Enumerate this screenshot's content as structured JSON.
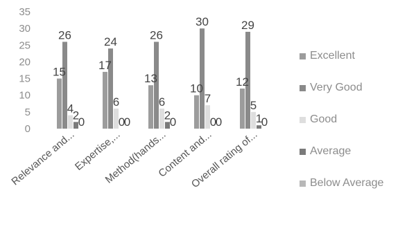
{
  "chart_data": {
    "type": "bar",
    "categories": [
      "Relevance and...",
      "Expertise,...",
      "Method(hands...",
      "Content and...",
      "Overall rating of..."
    ],
    "series": [
      {
        "name": "Excellent",
        "color": "#9c9c9c",
        "values": [
          15,
          17,
          13,
          10,
          12
        ]
      },
      {
        "name": "Very Good",
        "color": "#8a8a8a",
        "values": [
          26,
          24,
          26,
          30,
          29
        ]
      },
      {
        "name": "Good",
        "color": "#dedede",
        "values": [
          4,
          6,
          6,
          7,
          5
        ]
      },
      {
        "name": "Average",
        "color": "#7a7a7a",
        "values": [
          2,
          0,
          2,
          0,
          1
        ]
      },
      {
        "name": "Below Average",
        "color": "#b8b8b8",
        "values": [
          0,
          0,
          0,
          0,
          0
        ]
      }
    ],
    "data_labels": [
      [
        "15",
        "26",
        "4",
        "2",
        "0"
      ],
      [
        "17",
        "24",
        "6",
        "0",
        "0"
      ],
      [
        "13",
        "26",
        "6",
        "2",
        "0"
      ],
      [
        "10",
        "30",
        "7",
        "0",
        "0"
      ],
      [
        "12",
        "29",
        "5",
        "1",
        "0"
      ]
    ],
    "y_ticks": [
      0,
      5,
      10,
      15,
      20,
      25,
      30,
      35
    ],
    "ylim": [
      0,
      35
    ],
    "xlabel": "",
    "ylabel": "",
    "grid": false,
    "legend_position": "right"
  }
}
